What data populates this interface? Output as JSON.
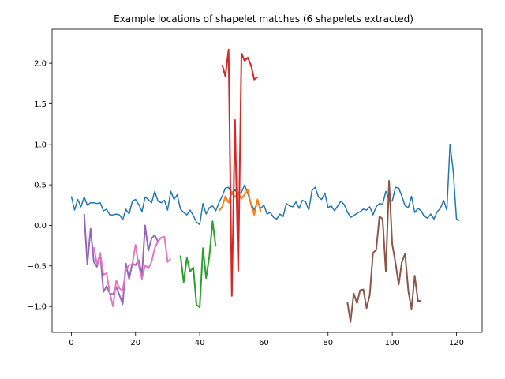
{
  "chart_data": {
    "type": "line",
    "title": "Example locations of shapelet matches (6 shapelets extracted)",
    "xlabel": "",
    "ylabel": "",
    "xlim": [
      -6,
      128
    ],
    "ylim": [
      -1.32,
      2.42
    ],
    "xticks": [
      0,
      20,
      40,
      60,
      80,
      100,
      120
    ],
    "yticks": [
      -1.0,
      -0.5,
      0.0,
      0.5,
      1.0,
      1.5,
      2.0
    ],
    "grid": false,
    "legend": "none",
    "series": [
      {
        "color": "#1f77b4",
        "x_start": 0,
        "values": [
          0.36,
          0.19,
          0.32,
          0.23,
          0.35,
          0.25,
          0.28,
          0.28,
          0.27,
          0.28,
          0.18,
          0.2,
          0.13,
          0.13,
          0.14,
          0.13,
          0.07,
          0.2,
          0.14,
          0.3,
          0.32,
          0.26,
          0.17,
          0.35,
          0.32,
          0.28,
          0.42,
          0.3,
          0.28,
          0.31,
          0.19,
          0.42,
          0.32,
          0.38,
          0.2,
          0.16,
          0.13,
          0.19,
          0.12,
          0.04,
          0.01,
          0.27,
          0.14,
          0.22,
          0.24,
          0.18,
          0.28,
          0.36,
          0.46,
          0.47,
          0.38,
          0.44,
          0.38,
          0.41,
          0.5,
          0.39,
          0.27,
          0.19,
          0.3,
          0.21,
          0.25,
          0.14,
          0.16,
          0.1,
          0.08,
          0.14,
          0.11,
          0.27,
          0.24,
          0.23,
          0.29,
          0.21,
          0.31,
          0.29,
          0.19,
          0.43,
          0.47,
          0.35,
          0.32,
          0.4,
          0.22,
          0.24,
          0.18,
          0.24,
          0.3,
          0.26,
          0.17,
          0.1,
          0.12,
          0.15,
          0.17,
          0.2,
          0.19,
          0.23,
          0.13,
          0.23,
          0.27,
          0.26,
          0.42,
          0.31,
          0.3,
          0.47,
          0.46,
          0.36,
          0.24,
          0.22,
          0.36,
          0.16,
          0.21,
          0.18,
          0.11,
          0.09,
          0.14,
          0.08,
          0.17,
          0.21,
          0.31,
          0.19,
          1.0,
          0.67,
          0.08,
          0.06
        ]
      },
      {
        "color": "#ff7f0e",
        "x_start": 46,
        "values": [
          0.18,
          0.23,
          0.36,
          0.28,
          0.42,
          0.35,
          0.4,
          0.33,
          0.38,
          0.44,
          0.25,
          0.13,
          0.32,
          0.17
        ]
      },
      {
        "color": "#2ca02c",
        "x_start": 34,
        "values": [
          -0.37,
          -0.7,
          -0.4,
          -0.57,
          -0.52,
          -0.98,
          -1.01,
          -0.28,
          -0.65,
          -0.38,
          0.05,
          -0.26
        ]
      },
      {
        "color": "#d62728",
        "x_start": 47,
        "values": [
          1.98,
          1.84,
          2.17,
          -0.87,
          1.3,
          -0.56,
          2.12,
          2.03,
          2.07,
          1.97,
          1.8,
          1.83
        ]
      },
      {
        "color": "#9467bd",
        "x_start": 4,
        "values": [
          0.14,
          -0.48,
          -0.04,
          -0.45,
          -0.51,
          -0.34,
          -0.82,
          -0.75,
          -0.84,
          -0.85,
          -0.76,
          -0.86,
          -0.97,
          -0.47,
          -0.66,
          -0.47,
          -0.49,
          -0.43,
          -0.61,
          0.0,
          -0.31,
          -0.16,
          -0.12,
          -0.2
        ]
      },
      {
        "color": "#e377c2",
        "x_start": 7,
        "values": [
          -0.27,
          -0.48,
          -0.34,
          -0.61,
          -0.59,
          -0.84,
          -1.0,
          -0.68,
          -0.78,
          -0.8,
          -0.55,
          -0.49,
          -0.48,
          -0.24,
          -0.5,
          -0.66,
          -0.49,
          -0.53,
          -0.45,
          -0.28,
          -0.2,
          -0.15,
          -0.14,
          -0.45,
          -0.41
        ]
      },
      {
        "color": "#8c564b",
        "x_start": 86,
        "values": [
          -0.94,
          -1.19,
          -0.84,
          -0.96,
          -0.8,
          -0.79,
          -1.02,
          -0.86,
          -0.34,
          -0.3,
          0.11,
          0.08,
          -0.57,
          0.55,
          -0.23,
          -0.46,
          -0.73,
          -0.45,
          -0.35,
          -0.81,
          -1.03,
          -0.62,
          -0.93,
          -0.93
        ]
      }
    ]
  }
}
